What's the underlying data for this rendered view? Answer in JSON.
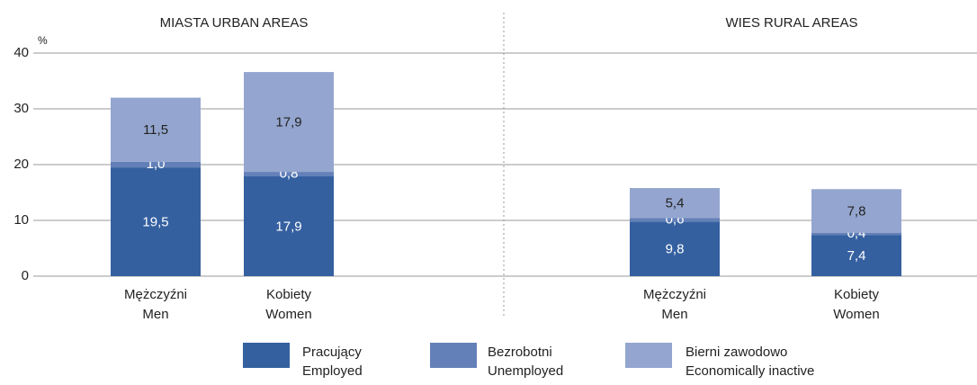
{
  "chart_data": [
    {
      "type": "stacked_bar",
      "title": "MIASTA   URBAN AREAS",
      "y_unit": "%",
      "categories": [
        [
          "Mężczyźni",
          "Men"
        ],
        [
          "Kobiety",
          "Women"
        ]
      ],
      "series": [
        {
          "name": [
            "Pracujący",
            "Employed"
          ],
          "color": "#3560a0",
          "values": [
            19.5,
            17.9
          ],
          "value_labels": [
            "19,5",
            "17,9"
          ]
        },
        {
          "name": [
            "Bezrobotni",
            "Unemployed"
          ],
          "color": "#6480b8",
          "values": [
            1.0,
            0.8
          ],
          "value_labels": [
            "1,0",
            "0,8"
          ]
        },
        {
          "name": [
            "Bierni zawodowo",
            "Economically inactive"
          ],
          "color": "#94a6cf",
          "values": [
            11.5,
            17.9
          ],
          "value_labels": [
            "11,5",
            "17,9"
          ]
        }
      ],
      "ylim": [
        0,
        40
      ],
      "yticks": [
        0,
        10,
        20,
        30,
        40
      ],
      "grid": true
    },
    {
      "type": "stacked_bar",
      "title": "WIES   RURAL AREAS",
      "categories": [
        [
          "Mężczyźni",
          "Men"
        ],
        [
          "Kobiety",
          "Women"
        ]
      ],
      "series": [
        {
          "color": "#3560a0",
          "values": [
            9.8,
            7.4
          ],
          "value_labels": [
            "9,8",
            "7,4"
          ]
        },
        {
          "color": "#6480b8",
          "values": [
            0.6,
            0.4
          ],
          "value_labels": [
            "0,6",
            "0,4"
          ]
        },
        {
          "color": "#94a6cf",
          "values": [
            5.4,
            7.8
          ],
          "value_labels": [
            "5,4",
            "7,8"
          ]
        }
      ],
      "ylim": [
        0,
        40
      ]
    }
  ]
}
